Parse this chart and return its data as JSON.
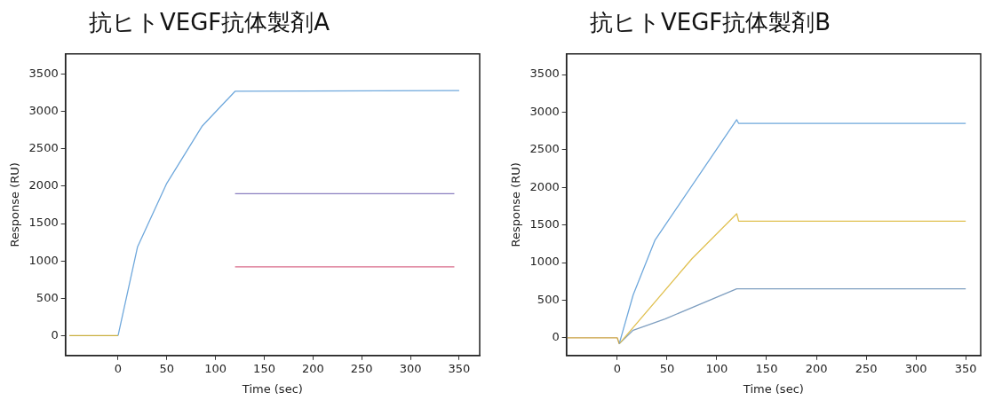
{
  "chart_data": [
    {
      "type": "line",
      "title": "抗ヒトVEGF抗体製剤A",
      "xlabel": "Time (sec)",
      "ylabel": "Response (RU)",
      "xlim": [
        -54,
        371
      ],
      "ylim": [
        -265,
        3770
      ],
      "xticks": [
        0,
        50,
        100,
        150,
        200,
        250,
        300,
        350
      ],
      "yticks": [
        0,
        500,
        1000,
        1500,
        2000,
        2500,
        3000,
        3500
      ],
      "legend": false,
      "marker": "none",
      "series": [
        {
          "color": "#c9b040",
          "x": [
            -50,
            0
          ],
          "values": [
            0,
            0
          ]
        },
        {
          "color": "#6fa8dc",
          "x": [
            0,
            20,
            50,
            86,
            120,
            350
          ],
          "values": [
            0,
            1190,
            2040,
            2800,
            3270,
            3280
          ]
        },
        {
          "color": "#8a7fc0",
          "x": [
            120,
            345
          ],
          "values": [
            1900,
            1900
          ]
        },
        {
          "color": "#d96a8a",
          "x": [
            120,
            345
          ],
          "values": [
            920,
            920
          ]
        }
      ]
    },
    {
      "type": "line",
      "title": "抗ヒトVEGF抗体製剤B",
      "xlabel": "Time (sec)",
      "ylabel": "Response (RU)",
      "xlim": [
        -51,
        365
      ],
      "ylim": [
        -236,
        3775
      ],
      "xticks": [
        0,
        50,
        100,
        150,
        200,
        250,
        300,
        350
      ],
      "yticks": [
        0,
        500,
        1000,
        1500,
        2000,
        2500,
        3000,
        3500
      ],
      "legend": false,
      "marker": "none",
      "series": [
        {
          "color": "#c9a040",
          "x": [
            -50,
            0,
            2
          ],
          "values": [
            0,
            0,
            -80
          ]
        },
        {
          "color": "#6fa8dc",
          "x": [
            2,
            16,
            38,
            120,
            122,
            350
          ],
          "values": [
            -80,
            570,
            1300,
            2900,
            2850,
            2850
          ]
        },
        {
          "color": "#e0c050",
          "x": [
            2,
            75,
            120,
            122,
            350
          ],
          "values": [
            -80,
            1050,
            1650,
            1550,
            1550
          ]
        },
        {
          "color": "#7f9fc0",
          "x": [
            2,
            16,
            48,
            120,
            122,
            350
          ],
          "values": [
            -80,
            100,
            250,
            650,
            650,
            650
          ]
        }
      ]
    }
  ]
}
